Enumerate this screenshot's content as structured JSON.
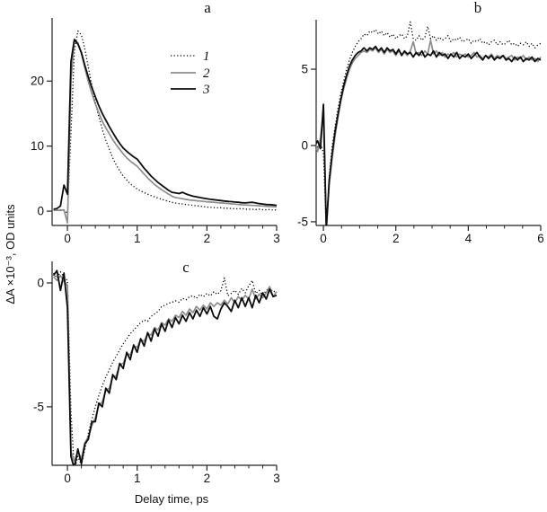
{
  "figure": {
    "ylabel": "ΔA ×10⁻³, OD units",
    "xlabel": "Delay time, ps",
    "colors": {
      "series1": "#000000",
      "series2": "#8d8d8d",
      "series3": "#0d0d0d",
      "axis": "#222222"
    },
    "legend": [
      {
        "label": "1",
        "style": "dotted"
      },
      {
        "label": "2",
        "style": "gray"
      },
      {
        "label": "3",
        "style": "black"
      }
    ]
  },
  "chart_data": [
    {
      "id": "a",
      "type": "line",
      "title": "a",
      "xlim": [
        -0.22,
        3.0
      ],
      "ylim": [
        -2.2,
        29.7
      ],
      "xticks": [
        0,
        1,
        2,
        3
      ],
      "yticks": [
        0,
        10,
        20
      ],
      "xminor": 0.2,
      "x0": -0.2,
      "dx": 0.05,
      "legend": true,
      "grid": false,
      "series": [
        {
          "name": "1",
          "style": "dotted",
          "y": [
            0.2,
            0.15,
            0.2,
            0.1,
            -0.3,
            12,
            24.6,
            27.7,
            27.1,
            24.9,
            22.1,
            19.3,
            16.8,
            14.5,
            12.6,
            10.9,
            9.5,
            8.2,
            7.1,
            6.2,
            5.4,
            4.8,
            4.2,
            3.8,
            3.4,
            3.1,
            2.85,
            2.6,
            2.4,
            2.2,
            2.0,
            1.85,
            1.65,
            1.5,
            1.35,
            1.25,
            1.15,
            1.1,
            1.0,
            0.95,
            0.9,
            0.82,
            0.78,
            0.7,
            0.62,
            0.6,
            0.55,
            0.5,
            0.52,
            0.45,
            0.45,
            0.4,
            0.38,
            0.35,
            0.4,
            0.32,
            0.3,
            0.28,
            0.25,
            0.3,
            0.22,
            0.2,
            0.25,
            0.18,
            0.2
          ]
        },
        {
          "name": "2",
          "style": "gray",
          "y": [
            0.1,
            0.15,
            0.1,
            0.2,
            -1.8,
            20,
            26.3,
            25.9,
            24.2,
            22.0,
            19.9,
            18.1,
            16.5,
            15.1,
            13.8,
            12.8,
            11.9,
            11.0,
            10.2,
            9.5,
            8.8,
            8.2,
            7.7,
            7.3,
            6.9,
            6.3,
            5.7,
            5.1,
            4.6,
            4.1,
            3.7,
            3.3,
            2.95,
            2.6,
            2.3,
            2.1,
            2.0,
            1.9,
            1.8,
            1.72,
            1.66,
            1.6,
            1.56,
            1.5,
            1.45,
            1.4,
            1.36,
            1.3,
            1.26,
            1.22,
            1.18,
            1.12,
            1.08,
            1.02,
            0.98,
            0.95,
            0.92,
            0.88,
            0.86,
            0.82,
            0.8,
            0.76,
            0.72,
            0.7,
            0.66
          ]
        },
        {
          "name": "3",
          "style": "black",
          "y": [
            0.3,
            0.4,
            0.8,
            4.0,
            2.6,
            23.0,
            26.4,
            25.7,
            24.4,
            22.4,
            20.6,
            19.0,
            17.6,
            16.2,
            15.0,
            14.0,
            13.0,
            12.1,
            11.2,
            10.4,
            9.7,
            9.2,
            8.75,
            8.35,
            8.0,
            7.3,
            6.6,
            6.0,
            5.4,
            4.9,
            4.4,
            4.0,
            3.6,
            3.2,
            2.9,
            2.8,
            2.7,
            2.9,
            2.65,
            2.45,
            2.3,
            2.2,
            2.1,
            2.0,
            1.9,
            1.82,
            1.76,
            1.7,
            1.62,
            1.56,
            1.5,
            1.46,
            1.4,
            1.36,
            1.3,
            1.26,
            1.32,
            1.36,
            1.26,
            1.16,
            1.1,
            1.02,
            1.0,
            0.95,
            0.9
          ]
        }
      ]
    },
    {
      "id": "b",
      "type": "line",
      "title": "b",
      "xlim": [
        -0.2,
        6.0
      ],
      "ylim": [
        -5.24,
        8.24
      ],
      "xticks": [
        0,
        2,
        4,
        6
      ],
      "yticks": [
        -5,
        0,
        5
      ],
      "xminor": 0.5,
      "x0": -0.24,
      "dx": 0.08,
      "legend": false,
      "grid": false,
      "series": [
        {
          "name": "1",
          "style": "dotted",
          "y": [
            0.1,
            -0.1,
            0.15,
            -0.5,
            -5.6,
            -2.1,
            -0.1,
            1.2,
            2.4,
            3.4,
            4.2,
            5.0,
            5.6,
            6.1,
            6.5,
            6.8,
            7.0,
            7.3,
            7.2,
            7.5,
            7.4,
            7.6,
            7.3,
            7.5,
            7.2,
            7.4,
            7.1,
            7.3,
            7.0,
            7.2,
            7.3,
            7.0,
            7.2,
            8.1,
            7.0,
            6.9,
            7.2,
            6.9,
            7.1,
            7.8,
            7.0,
            7.2,
            6.9,
            7.1,
            6.9,
            7.0,
            7.2,
            6.8,
            7.0,
            6.9,
            7.1,
            6.8,
            6.9,
            7.0,
            6.7,
            6.9,
            6.8,
            7.0,
            6.7,
            6.8,
            6.6,
            6.8,
            6.9,
            6.6,
            6.8,
            6.6,
            6.7,
            6.9,
            6.6,
            6.7,
            6.5,
            6.7,
            6.6,
            6.8,
            6.5,
            6.7,
            6.4,
            6.6,
            6.7
          ]
        },
        {
          "name": "2",
          "style": "gray",
          "y": [
            0.2,
            -0.4,
            0.5,
            2.3,
            -5.4,
            -2.6,
            -0.9,
            0.6,
            1.8,
            2.9,
            3.7,
            4.4,
            5.0,
            5.4,
            5.7,
            5.9,
            6.1,
            6.2,
            6.1,
            6.3,
            6.2,
            6.4,
            6.1,
            6.3,
            6.0,
            6.3,
            6.1,
            6.2,
            5.9,
            6.2,
            6.0,
            6.1,
            5.9,
            6.2,
            6.8,
            6.0,
            6.1,
            5.9,
            6.2,
            6.0,
            6.9,
            6.0,
            6.2,
            5.9,
            6.1,
            5.8,
            6.0,
            5.9,
            6.1,
            5.8,
            6.0,
            5.9,
            6.0,
            5.8,
            5.9,
            6.1,
            5.8,
            5.9,
            5.7,
            5.9,
            5.8,
            6.0,
            5.7,
            5.9,
            5.8,
            5.9,
            5.7,
            5.8,
            5.9,
            5.6,
            5.8,
            5.7,
            5.9,
            5.6,
            5.8,
            5.6,
            5.7,
            5.5,
            5.8
          ]
        },
        {
          "name": "3",
          "style": "black",
          "y": [
            0.0,
            0.3,
            -0.2,
            2.7,
            -5.5,
            -2.3,
            -0.6,
            0.9,
            2.0,
            3.0,
            3.9,
            4.6,
            5.2,
            5.6,
            5.9,
            6.1,
            6.2,
            6.4,
            6.2,
            6.4,
            6.3,
            6.5,
            6.2,
            6.4,
            6.1,
            6.4,
            6.2,
            6.3,
            6.0,
            6.3,
            5.9,
            6.2,
            6.0,
            6.1,
            5.8,
            6.1,
            5.9,
            6.2,
            5.8,
            6.0,
            5.9,
            6.2,
            5.8,
            6.1,
            5.9,
            6.0,
            5.7,
            6.0,
            5.8,
            6.1,
            5.7,
            5.9,
            5.8,
            6.0,
            5.7,
            5.9,
            6.1,
            5.8,
            5.6,
            5.9,
            5.7,
            5.9,
            5.6,
            5.8,
            5.7,
            5.9,
            5.6,
            5.7,
            5.5,
            5.8,
            5.6,
            5.8,
            5.5,
            5.7,
            5.6,
            5.8,
            5.5,
            5.7,
            5.6
          ]
        }
      ]
    },
    {
      "id": "c",
      "type": "line",
      "title": "c",
      "xlim": [
        -0.22,
        3.0
      ],
      "ylim": [
        -7.36,
        0.87
      ],
      "xticks": [
        0,
        1,
        2,
        3
      ],
      "yticks": [
        -5,
        0
      ],
      "xminor": 0.2,
      "x0": -0.2,
      "dx": 0.05,
      "legend": false,
      "grid": false,
      "series": [
        {
          "name": "1",
          "style": "dotted",
          "y": [
            0.4,
            0.2,
            0.45,
            0.25,
            0.1,
            -5.2,
            -7.6,
            -7.0,
            -7.35,
            -6.7,
            -6.05,
            -5.5,
            -5.0,
            -4.55,
            -4.15,
            -3.8,
            -3.5,
            -3.2,
            -2.95,
            -2.7,
            -2.45,
            -2.25,
            -2.05,
            -1.9,
            -1.75,
            -1.6,
            -1.5,
            -1.55,
            -1.35,
            -1.25,
            -1.15,
            -0.95,
            -0.9,
            -0.82,
            -0.78,
            -0.72,
            -0.78,
            -0.62,
            -0.68,
            -0.55,
            -0.52,
            -0.62,
            -0.46,
            -0.56,
            -0.42,
            -0.52,
            -0.36,
            -0.46,
            -0.32,
            0.2,
            -0.52,
            -0.42,
            -0.3,
            -0.46,
            -0.22,
            -0.4,
            -0.12,
            0.1,
            -0.42,
            -0.3,
            -0.5,
            -0.3,
            -0.2,
            -0.36,
            -0.3
          ]
        },
        {
          "name": "2",
          "style": "gray",
          "y": [
            0.25,
            0.1,
            0.3,
            0.05,
            -0.1,
            -6.8,
            -7.2,
            -6.8,
            -7.1,
            -6.45,
            -6.2,
            -5.75,
            -5.45,
            -4.95,
            -4.8,
            -4.35,
            -4.25,
            -3.8,
            -3.75,
            -3.3,
            -3.25,
            -2.85,
            -2.9,
            -2.55,
            -2.6,
            -2.3,
            -2.35,
            -2.05,
            -2.1,
            -1.8,
            -1.9,
            -1.6,
            -1.7,
            -1.45,
            -1.55,
            -1.3,
            -1.4,
            -1.15,
            -1.3,
            -1.05,
            -1.2,
            -0.95,
            -1.1,
            -0.9,
            -1.05,
            -0.8,
            -0.95,
            -0.8,
            -0.9,
            -0.7,
            -0.85,
            -0.6,
            -0.8,
            -0.55,
            -0.7,
            -0.5,
            -0.65,
            -0.25,
            -0.65,
            -0.45,
            -0.6,
            -0.4,
            -0.15,
            -0.55,
            -0.35
          ]
        },
        {
          "name": "3",
          "style": "black",
          "y": [
            0.3,
            0.5,
            -0.3,
            0.4,
            -1.0,
            -7.0,
            -7.5,
            -6.7,
            -7.3,
            -6.5,
            -6.3,
            -5.6,
            -5.6,
            -4.85,
            -5.0,
            -4.25,
            -4.45,
            -3.7,
            -3.9,
            -3.25,
            -3.45,
            -2.8,
            -3.1,
            -2.5,
            -2.8,
            -2.25,
            -2.55,
            -2.0,
            -2.35,
            -1.85,
            -2.15,
            -1.65,
            -1.95,
            -1.5,
            -1.8,
            -1.4,
            -1.65,
            -1.3,
            -1.55,
            -1.2,
            -1.45,
            -1.1,
            -1.35,
            -1.0,
            -1.25,
            -0.95,
            -1.35,
            -1.45,
            -1.05,
            -0.8,
            -0.95,
            -1.15,
            -0.7,
            -1.0,
            -0.6,
            -0.95,
            -0.6,
            -1.0,
            -0.5,
            -0.8,
            -0.4,
            -0.65,
            -0.25,
            -0.55,
            -0.5
          ]
        }
      ]
    }
  ]
}
